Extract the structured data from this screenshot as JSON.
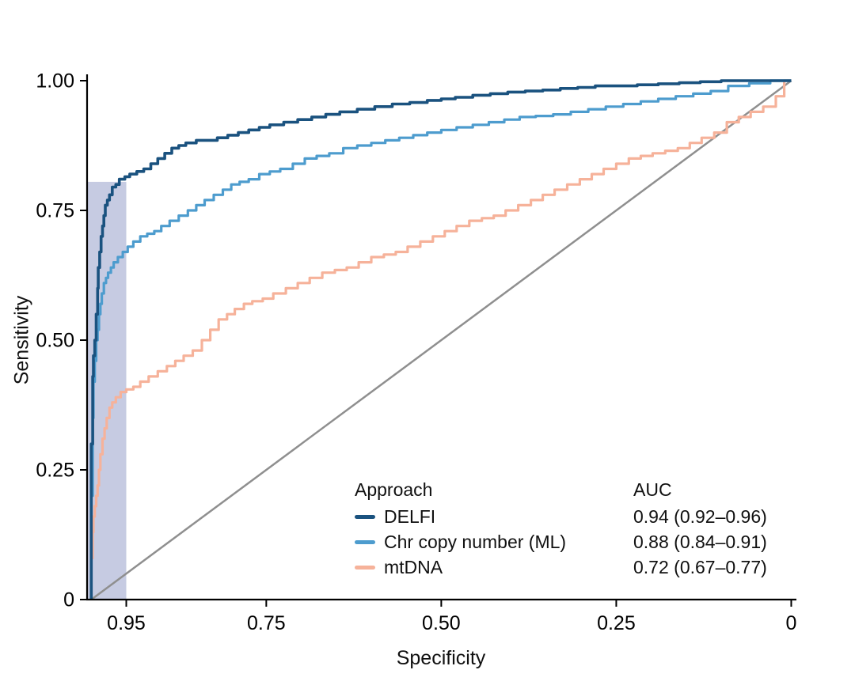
{
  "figure": {
    "background": "#ffffff",
    "text_color": "#111111",
    "axis_color": "#000000"
  },
  "chart_data": {
    "type": "line",
    "subtype": "roc-curve",
    "title": "",
    "xlabel": "Specificity",
    "ylabel": "Sensitivity",
    "x_axis": {
      "reversed": true,
      "range": [
        1.0,
        0
      ],
      "ticks": [
        0.95,
        0.75,
        0.5,
        0.25,
        0
      ],
      "tick_labels": [
        "0.95",
        "0.75",
        "0.50",
        "0.25",
        "0"
      ]
    },
    "y_axis": {
      "range": [
        0,
        1.0
      ],
      "ticks": [
        0,
        0.25,
        0.5,
        0.75,
        1.0
      ],
      "tick_labels": [
        "0",
        "0.25",
        "0.50",
        "0.75",
        "1.00"
      ]
    },
    "grid": "off",
    "diagonal": {
      "label": "chance line",
      "color": "#8f8f8f",
      "from": [
        1.0,
        0
      ],
      "to": [
        0,
        1.0
      ]
    },
    "band": {
      "label": "shaded high-specificity region (specificity 1.00 to 0.95)",
      "spec_from": 1.006,
      "spec_to": 0.95,
      "sens_from": 0,
      "sens_to": 0.805,
      "color": "rgba(118,130,187,0.42)"
    },
    "legend": {
      "position": "inside-bottom-right",
      "approach_header": "Approach",
      "auc_header": "AUC"
    },
    "series": [
      {
        "name": "DELFI",
        "auc_label": "0.94 (0.92–0.96)",
        "color": "#1a527f",
        "points": [
          [
            1.0,
            0.0
          ],
          [
            0.998,
            0.3
          ],
          [
            0.997,
            0.43
          ],
          [
            0.995,
            0.47
          ],
          [
            0.993,
            0.5
          ],
          [
            0.991,
            0.55
          ],
          [
            0.99,
            0.6
          ],
          [
            0.988,
            0.64
          ],
          [
            0.986,
            0.67
          ],
          [
            0.984,
            0.7
          ],
          [
            0.982,
            0.72
          ],
          [
            0.98,
            0.74
          ],
          [
            0.977,
            0.76
          ],
          [
            0.974,
            0.77
          ],
          [
            0.97,
            0.78
          ],
          [
            0.965,
            0.795
          ],
          [
            0.96,
            0.8
          ],
          [
            0.952,
            0.81
          ],
          [
            0.945,
            0.815
          ],
          [
            0.935,
            0.82
          ],
          [
            0.925,
            0.825
          ],
          [
            0.915,
            0.83
          ],
          [
            0.905,
            0.84
          ],
          [
            0.895,
            0.85
          ],
          [
            0.885,
            0.86
          ],
          [
            0.875,
            0.87
          ],
          [
            0.865,
            0.875
          ],
          [
            0.85,
            0.88
          ],
          [
            0.835,
            0.885
          ],
          [
            0.82,
            0.885
          ],
          [
            0.805,
            0.89
          ],
          [
            0.79,
            0.895
          ],
          [
            0.775,
            0.9
          ],
          [
            0.76,
            0.905
          ],
          [
            0.745,
            0.91
          ],
          [
            0.725,
            0.915
          ],
          [
            0.705,
            0.92
          ],
          [
            0.685,
            0.925
          ],
          [
            0.665,
            0.93
          ],
          [
            0.645,
            0.935
          ],
          [
            0.62,
            0.94
          ],
          [
            0.595,
            0.945
          ],
          [
            0.57,
            0.95
          ],
          [
            0.545,
            0.955
          ],
          [
            0.52,
            0.958
          ],
          [
            0.5,
            0.962
          ],
          [
            0.48,
            0.965
          ],
          [
            0.455,
            0.968
          ],
          [
            0.43,
            0.972
          ],
          [
            0.405,
            0.975
          ],
          [
            0.38,
            0.978
          ],
          [
            0.355,
            0.98
          ],
          [
            0.33,
            0.982
          ],
          [
            0.305,
            0.985
          ],
          [
            0.28,
            0.987
          ],
          [
            0.25,
            0.99
          ],
          [
            0.22,
            0.99
          ],
          [
            0.19,
            0.992
          ],
          [
            0.16,
            0.994
          ],
          [
            0.13,
            0.996
          ],
          [
            0.1,
            0.998
          ],
          [
            0.06,
            1.0
          ],
          [
            0.0,
            1.0
          ]
        ]
      },
      {
        "name": "Chr copy number (ML)",
        "auc_label": "0.88 (0.84–0.91)",
        "color": "#4d9cce",
        "points": [
          [
            1.0,
            0.0
          ],
          [
            0.998,
            0.2
          ],
          [
            0.997,
            0.35
          ],
          [
            0.995,
            0.42
          ],
          [
            0.993,
            0.46
          ],
          [
            0.991,
            0.5
          ],
          [
            0.989,
            0.52
          ],
          [
            0.987,
            0.55
          ],
          [
            0.985,
            0.57
          ],
          [
            0.982,
            0.59
          ],
          [
            0.979,
            0.61
          ],
          [
            0.976,
            0.62
          ],
          [
            0.972,
            0.63
          ],
          [
            0.968,
            0.64
          ],
          [
            0.962,
            0.65
          ],
          [
            0.955,
            0.66
          ],
          [
            0.948,
            0.67
          ],
          [
            0.94,
            0.68
          ],
          [
            0.93,
            0.69
          ],
          [
            0.92,
            0.7
          ],
          [
            0.91,
            0.705
          ],
          [
            0.9,
            0.71
          ],
          [
            0.888,
            0.72
          ],
          [
            0.875,
            0.73
          ],
          [
            0.862,
            0.74
          ],
          [
            0.85,
            0.75
          ],
          [
            0.838,
            0.76
          ],
          [
            0.825,
            0.77
          ],
          [
            0.812,
            0.78
          ],
          [
            0.8,
            0.79
          ],
          [
            0.788,
            0.8
          ],
          [
            0.775,
            0.805
          ],
          [
            0.76,
            0.81
          ],
          [
            0.745,
            0.82
          ],
          [
            0.73,
            0.825
          ],
          [
            0.712,
            0.83
          ],
          [
            0.695,
            0.84
          ],
          [
            0.678,
            0.85
          ],
          [
            0.66,
            0.855
          ],
          [
            0.64,
            0.86
          ],
          [
            0.62,
            0.87
          ],
          [
            0.6,
            0.875
          ],
          [
            0.58,
            0.88
          ],
          [
            0.56,
            0.885
          ],
          [
            0.54,
            0.89
          ],
          [
            0.52,
            0.895
          ],
          [
            0.5,
            0.9
          ],
          [
            0.478,
            0.905
          ],
          [
            0.455,
            0.91
          ],
          [
            0.432,
            0.915
          ],
          [
            0.41,
            0.92
          ],
          [
            0.388,
            0.925
          ],
          [
            0.365,
            0.93
          ],
          [
            0.34,
            0.932
          ],
          [
            0.315,
            0.935
          ],
          [
            0.29,
            0.94
          ],
          [
            0.265,
            0.945
          ],
          [
            0.24,
            0.95
          ],
          [
            0.215,
            0.955
          ],
          [
            0.19,
            0.96
          ],
          [
            0.165,
            0.965
          ],
          [
            0.14,
            0.97
          ],
          [
            0.115,
            0.975
          ],
          [
            0.09,
            0.98
          ],
          [
            0.06,
            0.99
          ],
          [
            0.03,
            0.995
          ],
          [
            0.0,
            1.0
          ]
        ]
      },
      {
        "name": "mtDNA",
        "auc_label": "0.72 (0.67–0.77)",
        "color": "#f6b29a",
        "points": [
          [
            1.0,
            0.0
          ],
          [
            0.998,
            0.08
          ],
          [
            0.997,
            0.13
          ],
          [
            0.995,
            0.16
          ],
          [
            0.993,
            0.18
          ],
          [
            0.991,
            0.2
          ],
          [
            0.989,
            0.22
          ],
          [
            0.987,
            0.25
          ],
          [
            0.984,
            0.28
          ],
          [
            0.981,
            0.31
          ],
          [
            0.978,
            0.33
          ],
          [
            0.974,
            0.35
          ],
          [
            0.97,
            0.37
          ],
          [
            0.965,
            0.38
          ],
          [
            0.958,
            0.39
          ],
          [
            0.95,
            0.4
          ],
          [
            0.94,
            0.405
          ],
          [
            0.93,
            0.41
          ],
          [
            0.918,
            0.42
          ],
          [
            0.905,
            0.43
          ],
          [
            0.892,
            0.44
          ],
          [
            0.88,
            0.45
          ],
          [
            0.868,
            0.46
          ],
          [
            0.855,
            0.47
          ],
          [
            0.842,
            0.48
          ],
          [
            0.83,
            0.5
          ],
          [
            0.818,
            0.52
          ],
          [
            0.806,
            0.54
          ],
          [
            0.795,
            0.55
          ],
          [
            0.782,
            0.56
          ],
          [
            0.77,
            0.57
          ],
          [
            0.755,
            0.575
          ],
          [
            0.74,
            0.58
          ],
          [
            0.722,
            0.59
          ],
          [
            0.705,
            0.6
          ],
          [
            0.688,
            0.61
          ],
          [
            0.67,
            0.62
          ],
          [
            0.652,
            0.63
          ],
          [
            0.635,
            0.635
          ],
          [
            0.618,
            0.64
          ],
          [
            0.6,
            0.65
          ],
          [
            0.582,
            0.66
          ],
          [
            0.565,
            0.665
          ],
          [
            0.548,
            0.67
          ],
          [
            0.53,
            0.68
          ],
          [
            0.512,
            0.69
          ],
          [
            0.495,
            0.7
          ],
          [
            0.478,
            0.71
          ],
          [
            0.46,
            0.72
          ],
          [
            0.442,
            0.73
          ],
          [
            0.425,
            0.735
          ],
          [
            0.408,
            0.74
          ],
          [
            0.39,
            0.75
          ],
          [
            0.372,
            0.76
          ],
          [
            0.355,
            0.77
          ],
          [
            0.338,
            0.78
          ],
          [
            0.32,
            0.79
          ],
          [
            0.302,
            0.8
          ],
          [
            0.285,
            0.81
          ],
          [
            0.268,
            0.82
          ],
          [
            0.25,
            0.83
          ],
          [
            0.232,
            0.84
          ],
          [
            0.215,
            0.85
          ],
          [
            0.198,
            0.855
          ],
          [
            0.18,
            0.86
          ],
          [
            0.162,
            0.865
          ],
          [
            0.145,
            0.87
          ],
          [
            0.128,
            0.88
          ],
          [
            0.11,
            0.89
          ],
          [
            0.092,
            0.9
          ],
          [
            0.075,
            0.92
          ],
          [
            0.058,
            0.93
          ],
          [
            0.04,
            0.94
          ],
          [
            0.022,
            0.95
          ],
          [
            0.01,
            0.97
          ],
          [
            0.0,
            1.0
          ]
        ]
      }
    ]
  }
}
